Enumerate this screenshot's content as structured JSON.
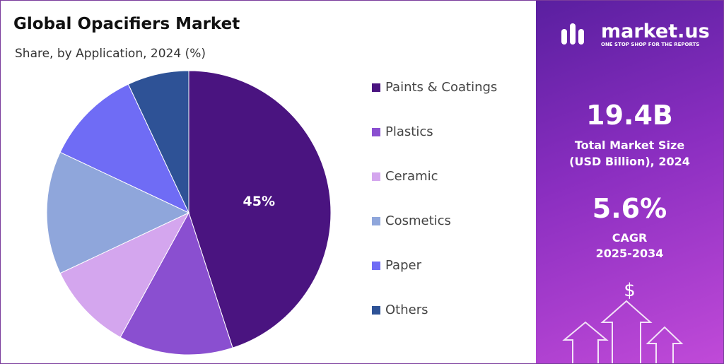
{
  "chart_data": {
    "type": "pie",
    "title": "Global Opacifiers Market",
    "subtitle": "Share, by Application, 2024 (%)",
    "categories": [
      "Paints & Coatings",
      "Plastics",
      "Ceramic",
      "Cosmetics",
      "Paper",
      "Others"
    ],
    "values": [
      45,
      13,
      10,
      14,
      11,
      7
    ],
    "value_labels": [
      "45%",
      null,
      null,
      null,
      null,
      null
    ],
    "colors": [
      "#4a1480",
      "#8a4fd0",
      "#d4a6ee",
      "#8fa6db",
      "#6f6cf5",
      "#2e5296"
    ],
    "legend": "right"
  },
  "panel": {
    "brand": "market.us",
    "tagline": "ONE STOP SHOP FOR THE REPORTS",
    "market_size": "19.4B",
    "market_size_label": [
      "Total Market Size",
      "(USD Billion), 2024"
    ],
    "cagr": "5.6%",
    "cagr_label": [
      "CAGR",
      "2025-2034"
    ],
    "currency": "$"
  }
}
